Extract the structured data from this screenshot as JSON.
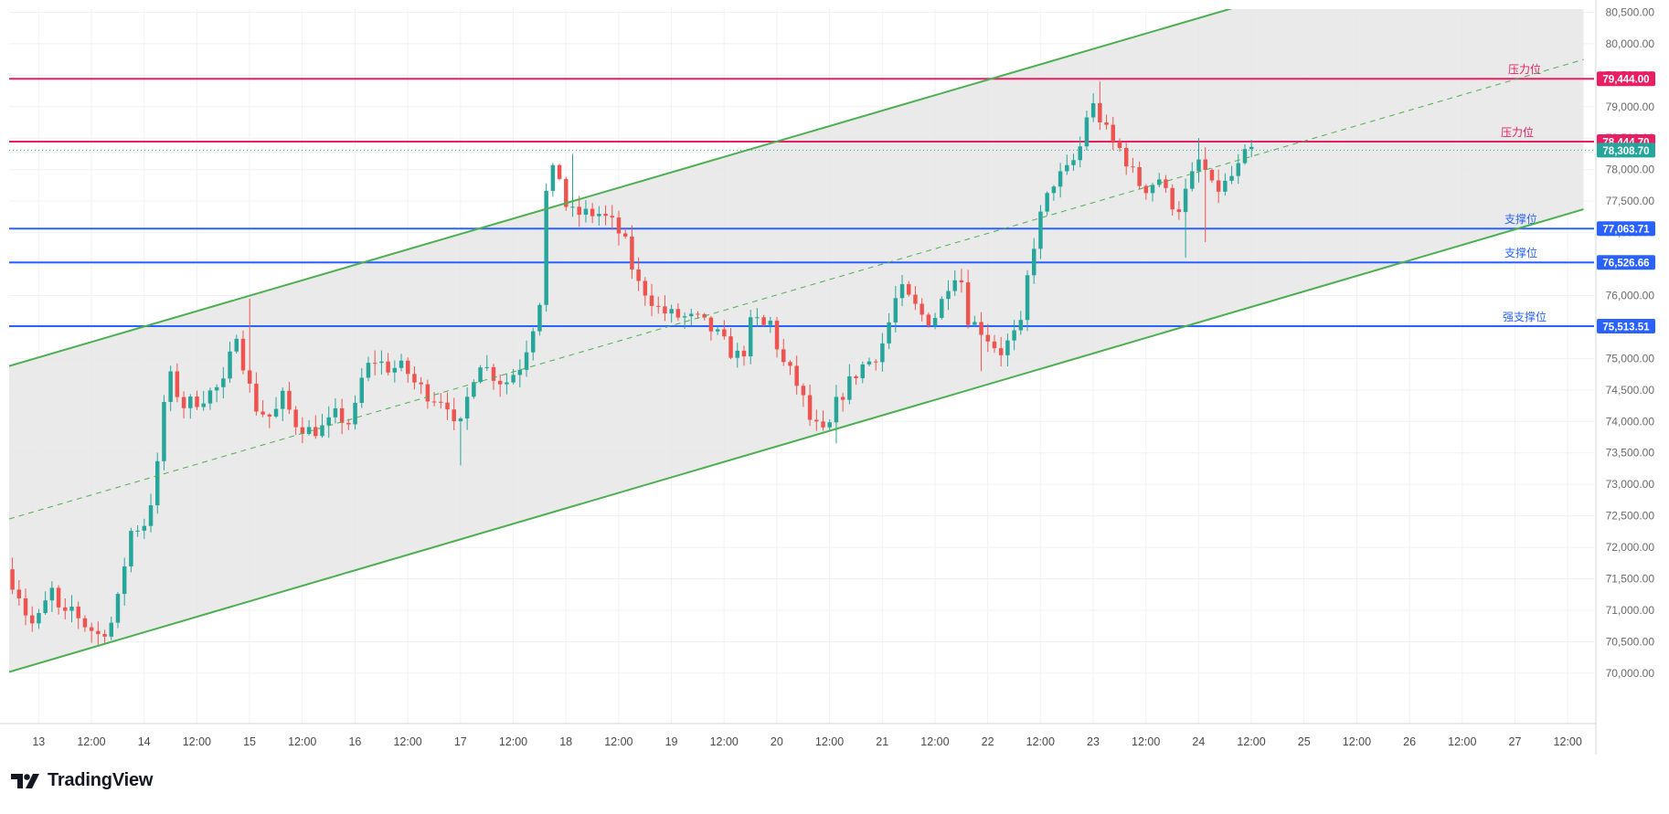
{
  "brand": {
    "name": "TradingView",
    "logo_icon": "tradingview-logo-icon"
  },
  "colors": {
    "up": "#26a69a",
    "down": "#ef5350",
    "channel": "#4caf50",
    "channel_fill": "#e6e6e6",
    "resistance": "#e91e63",
    "support": "#2962ff",
    "current_price": "#26a69a",
    "grid": "#f0f1f3"
  },
  "chart_data": {
    "type": "candlestick",
    "x_unit": "day-of-month (fractional)",
    "xlim": [
      12.72,
      27.75
    ],
    "ylim": [
      69200,
      80550
    ],
    "x_ticks": [
      {
        "x": 13,
        "label": "13"
      },
      {
        "x": 13.5,
        "label": "12:00"
      },
      {
        "x": 14,
        "label": "14"
      },
      {
        "x": 14.5,
        "label": "12:00"
      },
      {
        "x": 15,
        "label": "15"
      },
      {
        "x": 15.5,
        "label": "12:00"
      },
      {
        "x": 16,
        "label": "16"
      },
      {
        "x": 16.5,
        "label": "12:00"
      },
      {
        "x": 17,
        "label": "17"
      },
      {
        "x": 17.5,
        "label": "12:00"
      },
      {
        "x": 18,
        "label": "18"
      },
      {
        "x": 18.5,
        "label": "12:00"
      },
      {
        "x": 19,
        "label": "19"
      },
      {
        "x": 19.5,
        "label": "12:00"
      },
      {
        "x": 20,
        "label": "20"
      },
      {
        "x": 20.5,
        "label": "12:00"
      },
      {
        "x": 21,
        "label": "21"
      },
      {
        "x": 21.5,
        "label": "12:00"
      },
      {
        "x": 22,
        "label": "22"
      },
      {
        "x": 22.5,
        "label": "12:00"
      },
      {
        "x": 23,
        "label": "23"
      },
      {
        "x": 23.5,
        "label": "12:00"
      },
      {
        "x": 24,
        "label": "24"
      },
      {
        "x": 24.5,
        "label": "12:00"
      },
      {
        "x": 25,
        "label": "25"
      },
      {
        "x": 25.5,
        "label": "12:00"
      },
      {
        "x": 26,
        "label": "26"
      },
      {
        "x": 26.5,
        "label": "12:00"
      },
      {
        "x": 27,
        "label": "27"
      },
      {
        "x": 27.5,
        "label": "12:00"
      }
    ],
    "y_ticks": [
      {
        "y": 70000,
        "label": "70,000.00"
      },
      {
        "y": 70500,
        "label": "70,500.00"
      },
      {
        "y": 71000,
        "label": "71,000.00"
      },
      {
        "y": 71500,
        "label": "71,500.00"
      },
      {
        "y": 72000,
        "label": "72,000.00"
      },
      {
        "y": 72500,
        "label": "72,500.00"
      },
      {
        "y": 73000,
        "label": "73,000.00"
      },
      {
        "y": 73500,
        "label": "73,500.00"
      },
      {
        "y": 74000,
        "label": "74,000.00"
      },
      {
        "y": 74500,
        "label": "74,500.00"
      },
      {
        "y": 75000,
        "label": "75,000.00"
      },
      {
        "y": 75500,
        "label": "75,500.00"
      },
      {
        "y": 76000,
        "label": "76,000.00"
      },
      {
        "y": 76500,
        "label": "76,500.00"
      },
      {
        "y": 77000,
        "label": "77,000.00"
      },
      {
        "y": 77500,
        "label": "77,500.00"
      },
      {
        "y": 78000,
        "label": "78,000.00"
      },
      {
        "y": 78500,
        "label": "78,500.00"
      },
      {
        "y": 79000,
        "label": "79,000.00"
      },
      {
        "y": 79500,
        "label": "79,500.00"
      },
      {
        "y": 80000,
        "label": "80,000.00"
      },
      {
        "y": 80500,
        "label": "80,500.00"
      }
    ],
    "grid": true,
    "channel": {
      "upper": [
        {
          "x": 12.72,
          "y": 74880
        },
        {
          "x": 24.25,
          "y": 80530
        }
      ],
      "lower": [
        {
          "x": 12.72,
          "y": 70020
        },
        {
          "x": 27.65,
          "y": 77370
        }
      ],
      "mid": [
        {
          "x": 12.72,
          "y": 72450
        },
        {
          "x": 27.65,
          "y": 79750
        }
      ]
    },
    "levels": [
      {
        "name": "压力位",
        "value": 79444.0,
        "label": "79,444.00",
        "kind": "resistance"
      },
      {
        "name": "压力位",
        "value": 78444.7,
        "label": "78,444.70",
        "kind": "resistance"
      },
      {
        "name": "支撑位",
        "value": 77063.71,
        "label": "77,063.71",
        "kind": "support"
      },
      {
        "name": "支撑位",
        "value": 76526.66,
        "label": "76,526.66",
        "kind": "support"
      },
      {
        "name": "强支撑位",
        "value": 75513.51,
        "label": "75,513.51",
        "kind": "support"
      }
    ],
    "current_price": {
      "value": 78308.7,
      "label": "78,308.70"
    },
    "candle_interval_days": 0.0625,
    "anchors": [
      [
        12.72,
        71650
      ],
      [
        12.85,
        71250
      ],
      [
        12.95,
        70750
      ],
      [
        13.05,
        70900
      ],
      [
        13.15,
        71350
      ],
      [
        13.25,
        70800
      ],
      [
        13.35,
        71050
      ],
      [
        13.45,
        70800
      ],
      [
        13.6,
        70600
      ],
      [
        13.75,
        70850
      ],
      [
        13.9,
        72250
      ],
      [
        14.05,
        72400
      ],
      [
        14.15,
        73150
      ],
      [
        14.25,
        74800
      ],
      [
        14.4,
        74250
      ],
      [
        14.55,
        74350
      ],
      [
        14.7,
        74500
      ],
      [
        14.8,
        74600
      ],
      [
        14.9,
        75500
      ],
      [
        15.0,
        74700
      ],
      [
        15.1,
        74200
      ],
      [
        15.25,
        74050
      ],
      [
        15.35,
        74400
      ],
      [
        15.45,
        74000
      ],
      [
        15.6,
        73850
      ],
      [
        15.75,
        73900
      ],
      [
        15.85,
        74100
      ],
      [
        16.0,
        73950
      ],
      [
        16.1,
        74700
      ],
      [
        16.2,
        75000
      ],
      [
        16.35,
        74850
      ],
      [
        16.5,
        74850
      ],
      [
        16.6,
        74600
      ],
      [
        16.75,
        74400
      ],
      [
        16.9,
        74350
      ],
      [
        17.0,
        73700
      ],
      [
        17.1,
        74400
      ],
      [
        17.2,
        75000
      ],
      [
        17.3,
        74800
      ],
      [
        17.45,
        74600
      ],
      [
        17.6,
        74900
      ],
      [
        17.7,
        75400
      ],
      [
        17.8,
        76050
      ],
      [
        17.85,
        77800
      ],
      [
        17.95,
        78050
      ],
      [
        18.05,
        77300
      ],
      [
        18.2,
        77300
      ],
      [
        18.35,
        77300
      ],
      [
        18.5,
        77100
      ],
      [
        18.6,
        76800
      ],
      [
        18.7,
        76200
      ],
      [
        18.8,
        76050
      ],
      [
        18.9,
        75800
      ],
      [
        19.0,
        75700
      ],
      [
        19.15,
        75650
      ],
      [
        19.3,
        75600
      ],
      [
        19.45,
        75400
      ],
      [
        19.6,
        75100
      ],
      [
        19.7,
        75000
      ],
      [
        19.8,
        75650
      ],
      [
        19.9,
        75500
      ],
      [
        20.0,
        75600
      ],
      [
        20.05,
        75000
      ],
      [
        20.15,
        74800
      ],
      [
        20.25,
        74500
      ],
      [
        20.35,
        74000
      ],
      [
        20.5,
        73750
      ],
      [
        20.6,
        74300
      ],
      [
        20.75,
        74700
      ],
      [
        20.85,
        74900
      ],
      [
        20.95,
        75000
      ],
      [
        21.05,
        75300
      ],
      [
        21.15,
        75900
      ],
      [
        21.2,
        76100
      ],
      [
        21.3,
        75900
      ],
      [
        21.45,
        75600
      ],
      [
        21.55,
        75700
      ],
      [
        21.7,
        76400
      ],
      [
        21.8,
        76200
      ],
      [
        21.85,
        75600
      ],
      [
        21.95,
        75500
      ],
      [
        22.05,
        75300
      ],
      [
        22.15,
        75100
      ],
      [
        22.25,
        75300
      ],
      [
        22.35,
        75500
      ],
      [
        22.4,
        76200
      ],
      [
        22.5,
        77100
      ],
      [
        22.65,
        77800
      ],
      [
        22.8,
        78000
      ],
      [
        22.9,
        78300
      ],
      [
        23.0,
        79100
      ],
      [
        23.1,
        78800
      ],
      [
        23.2,
        78450
      ],
      [
        23.3,
        78300
      ],
      [
        23.45,
        77800
      ],
      [
        23.55,
        77700
      ],
      [
        23.65,
        77900
      ],
      [
        23.75,
        77500
      ],
      [
        23.85,
        77400
      ],
      [
        23.95,
        77800
      ],
      [
        24.05,
        78200
      ],
      [
        24.15,
        77700
      ],
      [
        24.25,
        77700
      ],
      [
        24.4,
        78000
      ],
      [
        24.5,
        78300
      ]
    ],
    "wicks": [
      {
        "x": 18.02,
        "y": 78250
      },
      {
        "x": 14.95,
        "y": 75950
      },
      {
        "x": 17.0,
        "y": 73300
      },
      {
        "x": 20.55,
        "y": 73650
      },
      {
        "x": 21.9,
        "y": 74800
      },
      {
        "x": 23.05,
        "y": 79400
      },
      {
        "x": 23.98,
        "y": 78500
      },
      {
        "x": 23.85,
        "y": 76600
      },
      {
        "x": 24.05,
        "y": 76850
      }
    ]
  }
}
